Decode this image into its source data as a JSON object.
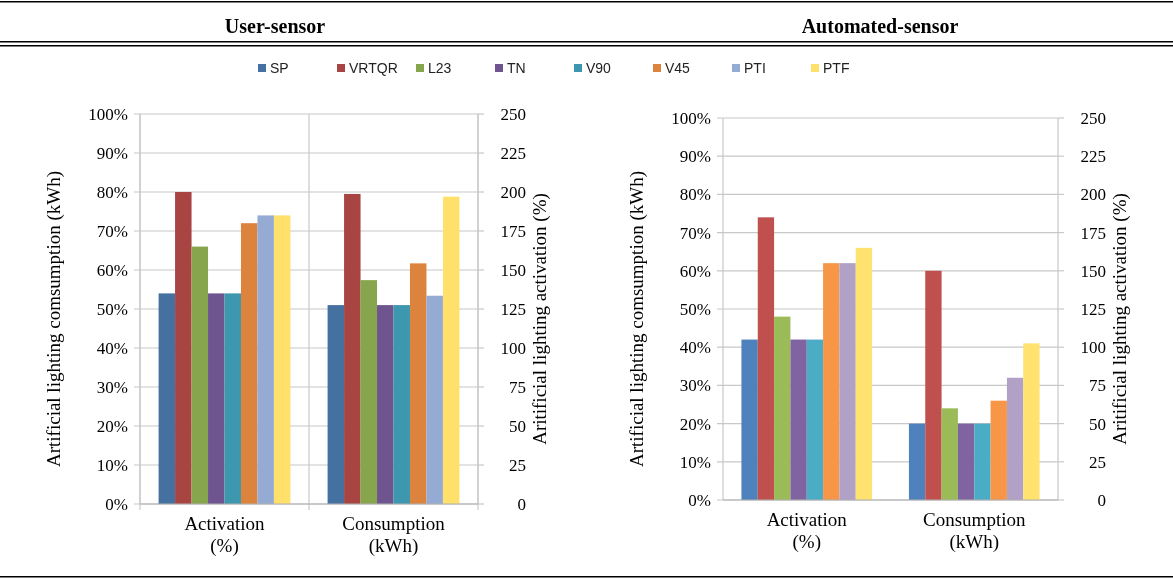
{
  "chart_data": [
    {
      "type": "bar",
      "title": "User-sensor",
      "categories": [
        "Activation (%)",
        "Consumption (kWh)"
      ],
      "ylabel": "Artificial lighting comsumption (kWh)",
      "y2label": "Aritificial lighting activation (%)",
      "ylim": [
        0,
        100
      ],
      "yticks": [
        {
          "value": 0,
          "label": "0%"
        },
        {
          "value": 10,
          "label": "10%"
        },
        {
          "value": 20,
          "label": "20%"
        },
        {
          "value": 30,
          "label": "30%"
        },
        {
          "value": 40,
          "label": "40%"
        },
        {
          "value": 50,
          "label": "50%"
        },
        {
          "value": 60,
          "label": "60%"
        },
        {
          "value": 70,
          "label": "70%"
        },
        {
          "value": 80,
          "label": "80%"
        },
        {
          "value": 90,
          "label": "90%"
        },
        {
          "value": 100,
          "label": "100%"
        }
      ],
      "y2lim": [
        0,
        250
      ],
      "y2ticks": [
        0,
        25,
        50,
        75,
        100,
        125,
        150,
        175,
        200,
        225,
        250
      ],
      "grid": true,
      "legend": "top",
      "series": [
        {
          "name": "SP",
          "color": "#44719f",
          "values": [
            54,
            51
          ]
        },
        {
          "name": "VRTQR",
          "color": "#a84442",
          "values": [
            80,
            79.5
          ]
        },
        {
          "name": "L23",
          "color": "#87a54c",
          "values": [
            66,
            57.4
          ]
        },
        {
          "name": "TN",
          "color": "#6f5590",
          "values": [
            54,
            51
          ]
        },
        {
          "name": "V90",
          "color": "#3d97ae",
          "values": [
            54,
            51
          ]
        },
        {
          "name": "V45",
          "color": "#dc833e",
          "values": [
            72,
            61.7
          ]
        },
        {
          "name": "PTI",
          "color": "#95abd3",
          "values": [
            74,
            53.4
          ]
        },
        {
          "name": "PTF",
          "color": "#ffe06b",
          "values": [
            74,
            78.8
          ]
        }
      ]
    },
    {
      "type": "bar",
      "title": "Automated-sensor",
      "categories": [
        "Activation (%)",
        "Consumption (kWh)"
      ],
      "ylabel": "Artificial lighting comsumption (kWh)",
      "y2label": "Aritificial lighting activation (%)",
      "ylim": [
        0,
        100
      ],
      "yticks": [
        {
          "value": 0,
          "label": "0%"
        },
        {
          "value": 10,
          "label": "10%"
        },
        {
          "value": 20,
          "label": "20%"
        },
        {
          "value": 30,
          "label": "30%"
        },
        {
          "value": 40,
          "label": "40%"
        },
        {
          "value": 50,
          "label": "50%"
        },
        {
          "value": 60,
          "label": "60%"
        },
        {
          "value": 70,
          "label": "70%"
        },
        {
          "value": 80,
          "label": "80%"
        },
        {
          "value": 90,
          "label": "90%"
        },
        {
          "value": 100,
          "label": "100%"
        }
      ],
      "y2lim": [
        0,
        250
      ],
      "y2ticks": [
        0,
        25,
        50,
        75,
        100,
        125,
        150,
        175,
        200,
        225,
        250
      ],
      "grid": "y",
      "series": [
        {
          "color": "#4f81bd",
          "values": [
            42,
            20
          ]
        },
        {
          "color": "#c0504d",
          "values": [
            74,
            60
          ]
        },
        {
          "color": "#9bbb59",
          "values": [
            48,
            24
          ]
        },
        {
          "color": "#8064a2",
          "values": [
            42,
            20
          ]
        },
        {
          "color": "#4bacc6",
          "values": [
            42,
            20
          ]
        },
        {
          "color": "#f79646",
          "values": [
            62,
            26
          ]
        },
        {
          "color": "#b2a1c7",
          "values": [
            62,
            32
          ]
        },
        {
          "color": "#ffe36e",
          "values": [
            66,
            41
          ]
        }
      ]
    }
  ]
}
